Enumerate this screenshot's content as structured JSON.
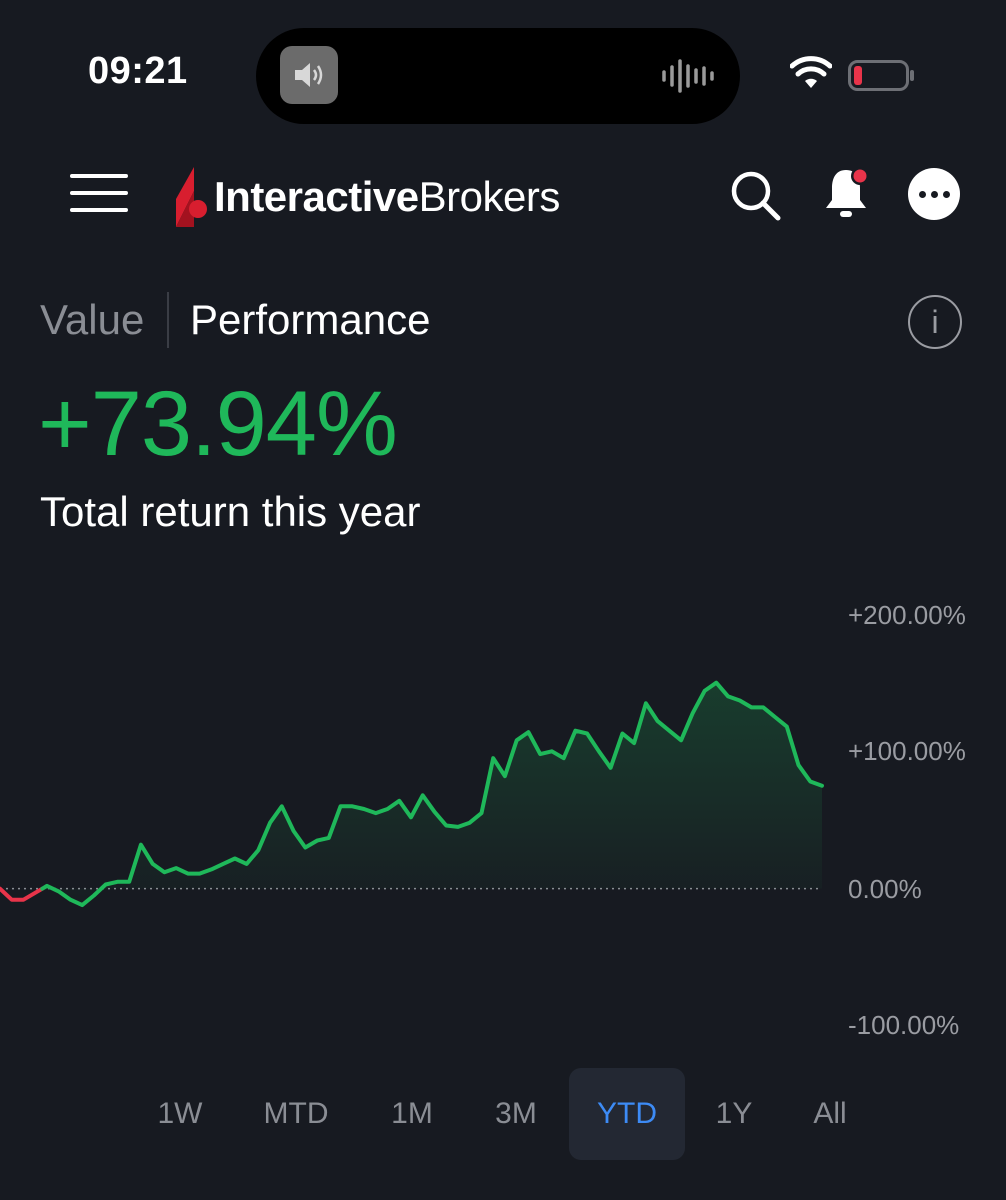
{
  "status_bar": {
    "time": "09:21",
    "icons": [
      "speaker-icon",
      "audio-wave-icon",
      "wifi-icon",
      "battery-icon"
    ]
  },
  "header": {
    "menu_icon": "hamburger-icon",
    "logo_bold": "Interactive",
    "logo_regular": "Brokers",
    "icons": [
      "search-icon",
      "bell-icon",
      "more-icon"
    ]
  },
  "tabs": {
    "value_label": "Value",
    "performance_label": "Performance",
    "active": "Performance",
    "info_glyph": "i"
  },
  "summary": {
    "return_value": "+73.94%",
    "return_label": "Total return this year"
  },
  "chart_data": {
    "type": "line",
    "y_ticks": [
      "+200.00%",
      "+100.00%",
      "0.00%",
      "-100.00%"
    ],
    "ylim": [
      -100,
      200
    ],
    "baseline": 0,
    "positive_color": "#1fb85a",
    "negative_color": "#e8344a",
    "values": [
      0,
      -8,
      -8,
      -3,
      2,
      -2,
      -8,
      -12,
      -5,
      3,
      5,
      5,
      32,
      18,
      12,
      15,
      11,
      11,
      14,
      18,
      22,
      18,
      28,
      48,
      60,
      42,
      30,
      35,
      37,
      60,
      60,
      58,
      55,
      58,
      64,
      52,
      68,
      56,
      46,
      45,
      48,
      55,
      95,
      82,
      108,
      114,
      98,
      100,
      95,
      115,
      113,
      100,
      88,
      113,
      106,
      135,
      122,
      115,
      108,
      128,
      144,
      150,
      140,
      137,
      132,
      132,
      125,
      118,
      90,
      78,
      75
    ]
  },
  "periods": {
    "items": [
      "1W",
      "MTD",
      "1M",
      "3M",
      "YTD",
      "1Y",
      "All"
    ],
    "active": "YTD"
  }
}
